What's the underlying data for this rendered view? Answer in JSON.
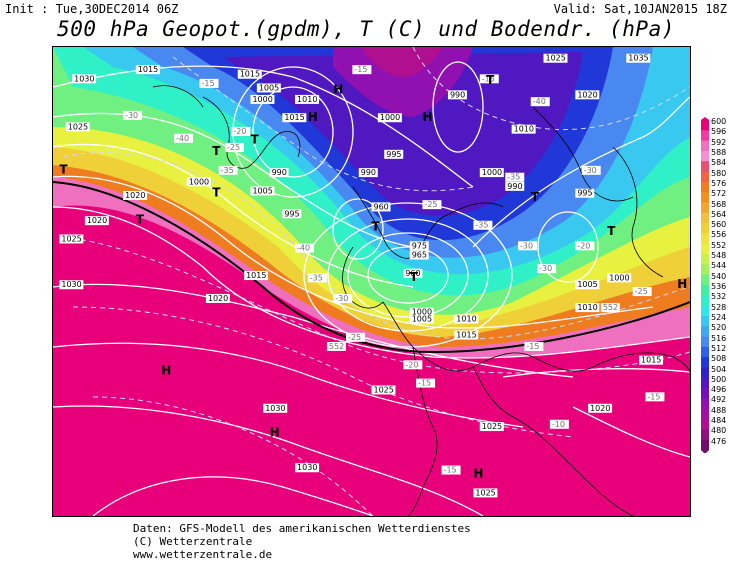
{
  "header": {
    "init": "Init : Tue,30DEC2014 06Z",
    "valid": "Valid: Sat,10JAN2015 18Z",
    "title": "500 hPa Geopot.(gpdm), T (C) und Bodendr. (hPa)"
  },
  "footer": {
    "line1": "Daten: GFS-Modell des amerikanischen Wetterdienstes",
    "line2": "(C) Wetterzentrale",
    "line3": "www.wetterzentrale.de"
  },
  "legend": {
    "ticks": [
      "600",
      "596",
      "592",
      "588",
      "584",
      "580",
      "576",
      "572",
      "568",
      "564",
      "560",
      "556",
      "552",
      "548",
      "544",
      "540",
      "536",
      "532",
      "528",
      "524",
      "520",
      "516",
      "512",
      "508",
      "504",
      "500",
      "496",
      "492",
      "488",
      "484",
      "480",
      "476"
    ],
    "colors": [
      "#e8007a",
      "#f23aa0",
      "#f070c0",
      "#f290d2",
      "#e85070",
      "#f06440",
      "#f07c20",
      "#f09020",
      "#f0a830",
      "#f2c040",
      "#f0d038",
      "#f0e040",
      "#e8f040",
      "#c8f050",
      "#a0f060",
      "#70f080",
      "#40f0a0",
      "#30f0c8",
      "#30e8e8",
      "#38c8f0",
      "#40a8f0",
      "#4888f0",
      "#3060e8",
      "#2038d8",
      "#3020c8",
      "#5018c0",
      "#7010b8",
      "#9010b0",
      "#a010a0",
      "#b01090",
      "#901080",
      "#701068"
    ]
  },
  "map": {
    "isobar_labels": [
      {
        "text": "1015",
        "x": 13,
        "y": 11
      },
      {
        "text": "1015",
        "x": 29,
        "y": 13
      },
      {
        "text": "1005",
        "x": 32,
        "y": 19
      },
      {
        "text": "1000",
        "x": 31,
        "y": 24
      },
      {
        "text": "1010",
        "x": 38,
        "y": 24
      },
      {
        "text": "1015",
        "x": 36,
        "y": 32
      },
      {
        "text": "1000",
        "x": 51,
        "y": 32
      },
      {
        "text": "990",
        "x": 62,
        "y": 22
      },
      {
        "text": "1010",
        "x": 72,
        "y": 37
      },
      {
        "text": "1025",
        "x": 77,
        "y": 6
      },
      {
        "text": "1020",
        "x": 82,
        "y": 22
      },
      {
        "text": "1035",
        "x": 90,
        "y": 6
      },
      {
        "text": "1030",
        "x": 3,
        "y": 15
      },
      {
        "text": "1025",
        "x": 2,
        "y": 36
      },
      {
        "text": "1020",
        "x": 11,
        "y": 66
      },
      {
        "text": "1020",
        "x": 5,
        "y": 77
      },
      {
        "text": "1000",
        "x": 21,
        "y": 60
      },
      {
        "text": "990",
        "x": 34,
        "y": 56
      },
      {
        "text": "1005",
        "x": 31,
        "y": 64
      },
      {
        "text": "995",
        "x": 36,
        "y": 74
      },
      {
        "text": "995",
        "x": 52,
        "y": 48
      },
      {
        "text": "990",
        "x": 48,
        "y": 56
      },
      {
        "text": "1000",
        "x": 67,
        "y": 56
      },
      {
        "text": "990",
        "x": 71,
        "y": 62
      },
      {
        "text": "960",
        "x": 50,
        "y": 71
      },
      {
        "text": "995",
        "x": 82,
        "y": 65
      },
      {
        "text": "975",
        "x": 56,
        "y": 88
      },
      {
        "text": "965",
        "x": 56,
        "y": 92
      },
      {
        "text": "960",
        "x": 55,
        "y": 100
      },
      {
        "text": "1000",
        "x": 87,
        "y": 102
      },
      {
        "text": "1005",
        "x": 82,
        "y": 105
      },
      {
        "text": "1010",
        "x": 82,
        "y": 115
      },
      {
        "text": "1015",
        "x": 30,
        "y": 101
      },
      {
        "text": "1030",
        "x": 1,
        "y": 105
      },
      {
        "text": "1020",
        "x": 24,
        "y": 111
      },
      {
        "text": "1000",
        "x": 56,
        "y": 117
      },
      {
        "text": "1005",
        "x": 56,
        "y": 120
      },
      {
        "text": "1010",
        "x": 63,
        "y": 120
      },
      {
        "text": "1015",
        "x": 63,
        "y": 127
      },
      {
        "text": "1030",
        "x": 33,
        "y": 159
      },
      {
        "text": "1025",
        "x": 50,
        "y": 151
      },
      {
        "text": "1020",
        "x": 84,
        "y": 159
      },
      {
        "text": "1015",
        "x": 92,
        "y": 138
      },
      {
        "text": "1025",
        "x": 67,
        "y": 167
      },
      {
        "text": "1030",
        "x": 38,
        "y": 185
      },
      {
        "text": "1025",
        "x": 66,
        "y": 196
      },
      {
        "text": "1025",
        "x": 1,
        "y": 85
      }
    ],
    "temp_labels": [
      {
        "text": "-15",
        "x": 23,
        "y": 17
      },
      {
        "text": "-15",
        "x": 67,
        "y": 15
      },
      {
        "text": "-15",
        "x": 47,
        "y": 11
      },
      {
        "text": "-40",
        "x": 75,
        "y": 25
      },
      {
        "text": "-30",
        "x": 11,
        "y": 31
      },
      {
        "text": "-40",
        "x": 19,
        "y": 41
      },
      {
        "text": "-20",
        "x": 28,
        "y": 38
      },
      {
        "text": "-25",
        "x": 27,
        "y": 45
      },
      {
        "text": "-35",
        "x": 26,
        "y": 55
      },
      {
        "text": "-35",
        "x": 71,
        "y": 58
      },
      {
        "text": "-30",
        "x": 73,
        "y": 88
      },
      {
        "text": "-30",
        "x": 83,
        "y": 55
      },
      {
        "text": "-25",
        "x": 58,
        "y": 70
      },
      {
        "text": "-35",
        "x": 66,
        "y": 79
      },
      {
        "text": "-40",
        "x": 38,
        "y": 89
      },
      {
        "text": "-35",
        "x": 40,
        "y": 102
      },
      {
        "text": "-30",
        "x": 44,
        "y": 111
      },
      {
        "text": "-20",
        "x": 82,
        "y": 88
      },
      {
        "text": "-25",
        "x": 91,
        "y": 108
      },
      {
        "text": "-30",
        "x": 76,
        "y": 98
      },
      {
        "text": "-25",
        "x": 46,
        "y": 128
      },
      {
        "text": "-20",
        "x": 55,
        "y": 140
      },
      {
        "text": "-15",
        "x": 57,
        "y": 148
      },
      {
        "text": "-15",
        "x": 74,
        "y": 132
      },
      {
        "text": "-15",
        "x": 93,
        "y": 154
      },
      {
        "text": "-15",
        "x": 61,
        "y": 186
      },
      {
        "text": "552",
        "x": 43,
        "y": 132
      },
      {
        "text": "552",
        "x": 86,
        "y": 115
      },
      {
        "text": "-10",
        "x": 78,
        "y": 166
      }
    ],
    "pressure_centers": [
      {
        "text": "H",
        "x": 44,
        "y": 15
      },
      {
        "text": "T",
        "x": 68,
        "y": 11
      },
      {
        "text": "H",
        "x": 58,
        "y": 27
      },
      {
        "text": "H",
        "x": 40,
        "y": 27
      },
      {
        "text": "T",
        "x": 31,
        "y": 37
      },
      {
        "text": "T",
        "x": 25,
        "y": 42
      },
      {
        "text": "T",
        "x": 1,
        "y": 50
      },
      {
        "text": "T",
        "x": 13,
        "y": 72
      },
      {
        "text": "T",
        "x": 25,
        "y": 60
      },
      {
        "text": "T",
        "x": 50,
        "y": 75
      },
      {
        "text": "T",
        "x": 75,
        "y": 62
      },
      {
        "text": "T",
        "x": 87,
        "y": 77
      },
      {
        "text": "T",
        "x": 56,
        "y": 97
      },
      {
        "text": "H",
        "x": 98,
        "y": 100
      },
      {
        "text": "H",
        "x": 17,
        "y": 138
      },
      {
        "text": "H",
        "x": 34,
        "y": 165
      },
      {
        "text": "H",
        "x": 66,
        "y": 183
      }
    ]
  }
}
